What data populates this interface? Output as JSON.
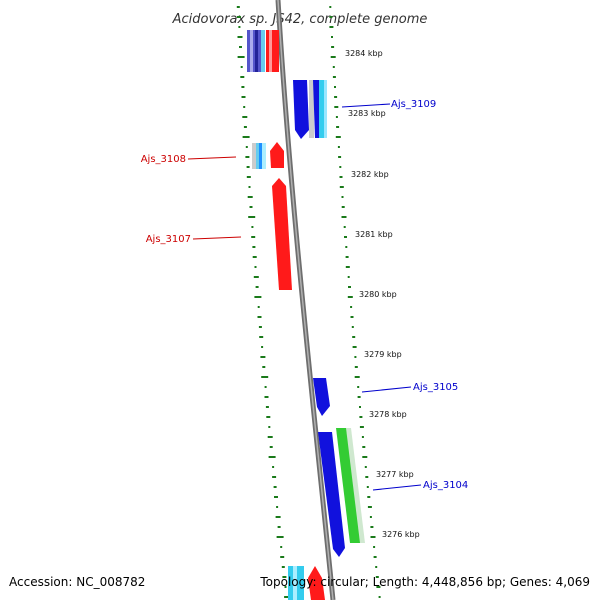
{
  "map": {
    "title": "Acidovorax sp. JS42, complete genome",
    "accession": "Accession: NC_008782",
    "topology": "Topology: circular; Length: 4,448,856 bp; Genes: 4,069",
    "ticks": [
      "3284 kbp",
      "3283 kbp",
      "3282 kbp",
      "3281 kbp",
      "3280 kbp",
      "3279 kbp",
      "3278 kbp",
      "3277 kbp",
      "3276 kbp"
    ],
    "genes": [
      {
        "name": "Ajs_3109",
        "strand": "forward"
      },
      {
        "name": "Ajs_3108",
        "strand": "reverse"
      },
      {
        "name": "Ajs_3107",
        "strand": "reverse"
      },
      {
        "name": "Ajs_3105",
        "strand": "forward"
      },
      {
        "name": "Ajs_3104",
        "strand": "forward"
      }
    ],
    "colors": {
      "forward_cds": "#0000ee",
      "reverse_cds": "#ff0000",
      "rna": "#33cc33",
      "backbone": "#808080",
      "gc_dots": "#1a7a1a",
      "label_forward": "#0000cc",
      "label_reverse": "#cc0000"
    }
  }
}
